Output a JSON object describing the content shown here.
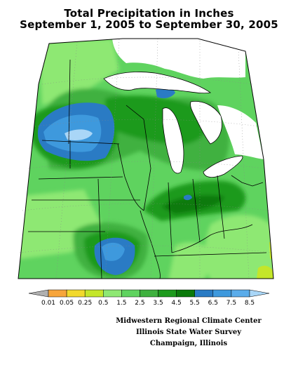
{
  "title_line1": "Total Precipitation in Inches",
  "title_line2": "September 1, 2005 to September 30, 2005",
  "legend": {
    "thresholds": [
      "0.01",
      "0.05",
      "0.25",
      "0.5",
      "1.5",
      "2.5",
      "3.5",
      "4.5",
      "5.5",
      "6.5",
      "7.5",
      "8.5"
    ],
    "colors": [
      "#b0b0b0",
      "#f7a53b",
      "#f2d92d",
      "#c4e62a",
      "#8ee873",
      "#5fd35f",
      "#3fb13f",
      "#1d9a1d",
      "#0b7a0b",
      "#2a7bc4",
      "#3e99dd",
      "#5aacea",
      "#a9d6f7"
    ]
  },
  "credits": {
    "line1": "Midwestern Regional Climate Center",
    "line2": "Illinois State Water Survey",
    "line3": "Champaign, Illinois"
  },
  "colors": {
    "lake": "#ffffff",
    "border": "#000000",
    "grid": "#888888"
  }
}
